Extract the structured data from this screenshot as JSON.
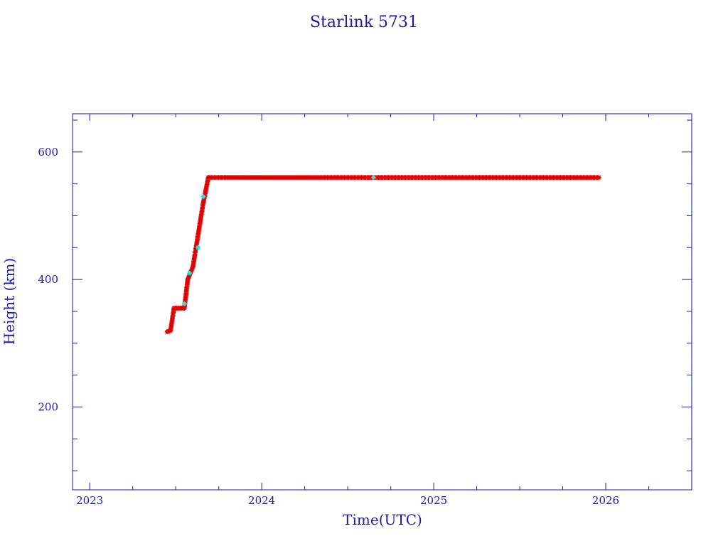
{
  "chart_data": {
    "type": "scatter",
    "title": "Starlink 5731",
    "xlabel": "Time(UTC)",
    "ylabel": "Height (km)",
    "xlim": [
      2022.9,
      2026.5
    ],
    "ylim": [
      70,
      660
    ],
    "x_ticks": [
      2023,
      2024,
      2025,
      2026
    ],
    "x_tick_labels": [
      "2023",
      "2024",
      "2025",
      "2026"
    ],
    "x_minor_step": 0.25,
    "y_ticks": [
      200,
      400,
      600
    ],
    "y_tick_labels": [
      "200",
      "400",
      "600"
    ],
    "y_minor_step": 50,
    "grid": false,
    "colors": {
      "axis": "#1a1aa6",
      "main": "#e00000",
      "alt": "#33dddd"
    },
    "segments": [
      {
        "x": [
          2023.45,
          2023.47
        ],
        "y": [
          318,
          320
        ]
      },
      {
        "x": [
          2023.47,
          2023.49
        ],
        "y": [
          320,
          355
        ]
      },
      {
        "x": [
          2023.49,
          2023.55
        ],
        "y": [
          355,
          355
        ]
      },
      {
        "x": [
          2023.55,
          2023.57
        ],
        "y": [
          355,
          400
        ]
      },
      {
        "x": [
          2023.57,
          2023.6
        ],
        "y": [
          400,
          420
        ]
      },
      {
        "x": [
          2023.6,
          2023.66
        ],
        "y": [
          420,
          520
        ]
      },
      {
        "x": [
          2023.66,
          2023.69
        ],
        "y": [
          520,
          560
        ]
      },
      {
        "x": [
          2023.69,
          2025.96
        ],
        "y": [
          560,
          560
        ]
      }
    ],
    "alt_points": [
      {
        "x": 2023.55,
        "y": 362
      },
      {
        "x": 2023.58,
        "y": 410
      },
      {
        "x": 2023.63,
        "y": 450
      },
      {
        "x": 2023.66,
        "y": 530
      },
      {
        "x": 2024.65,
        "y": 560
      }
    ]
  }
}
